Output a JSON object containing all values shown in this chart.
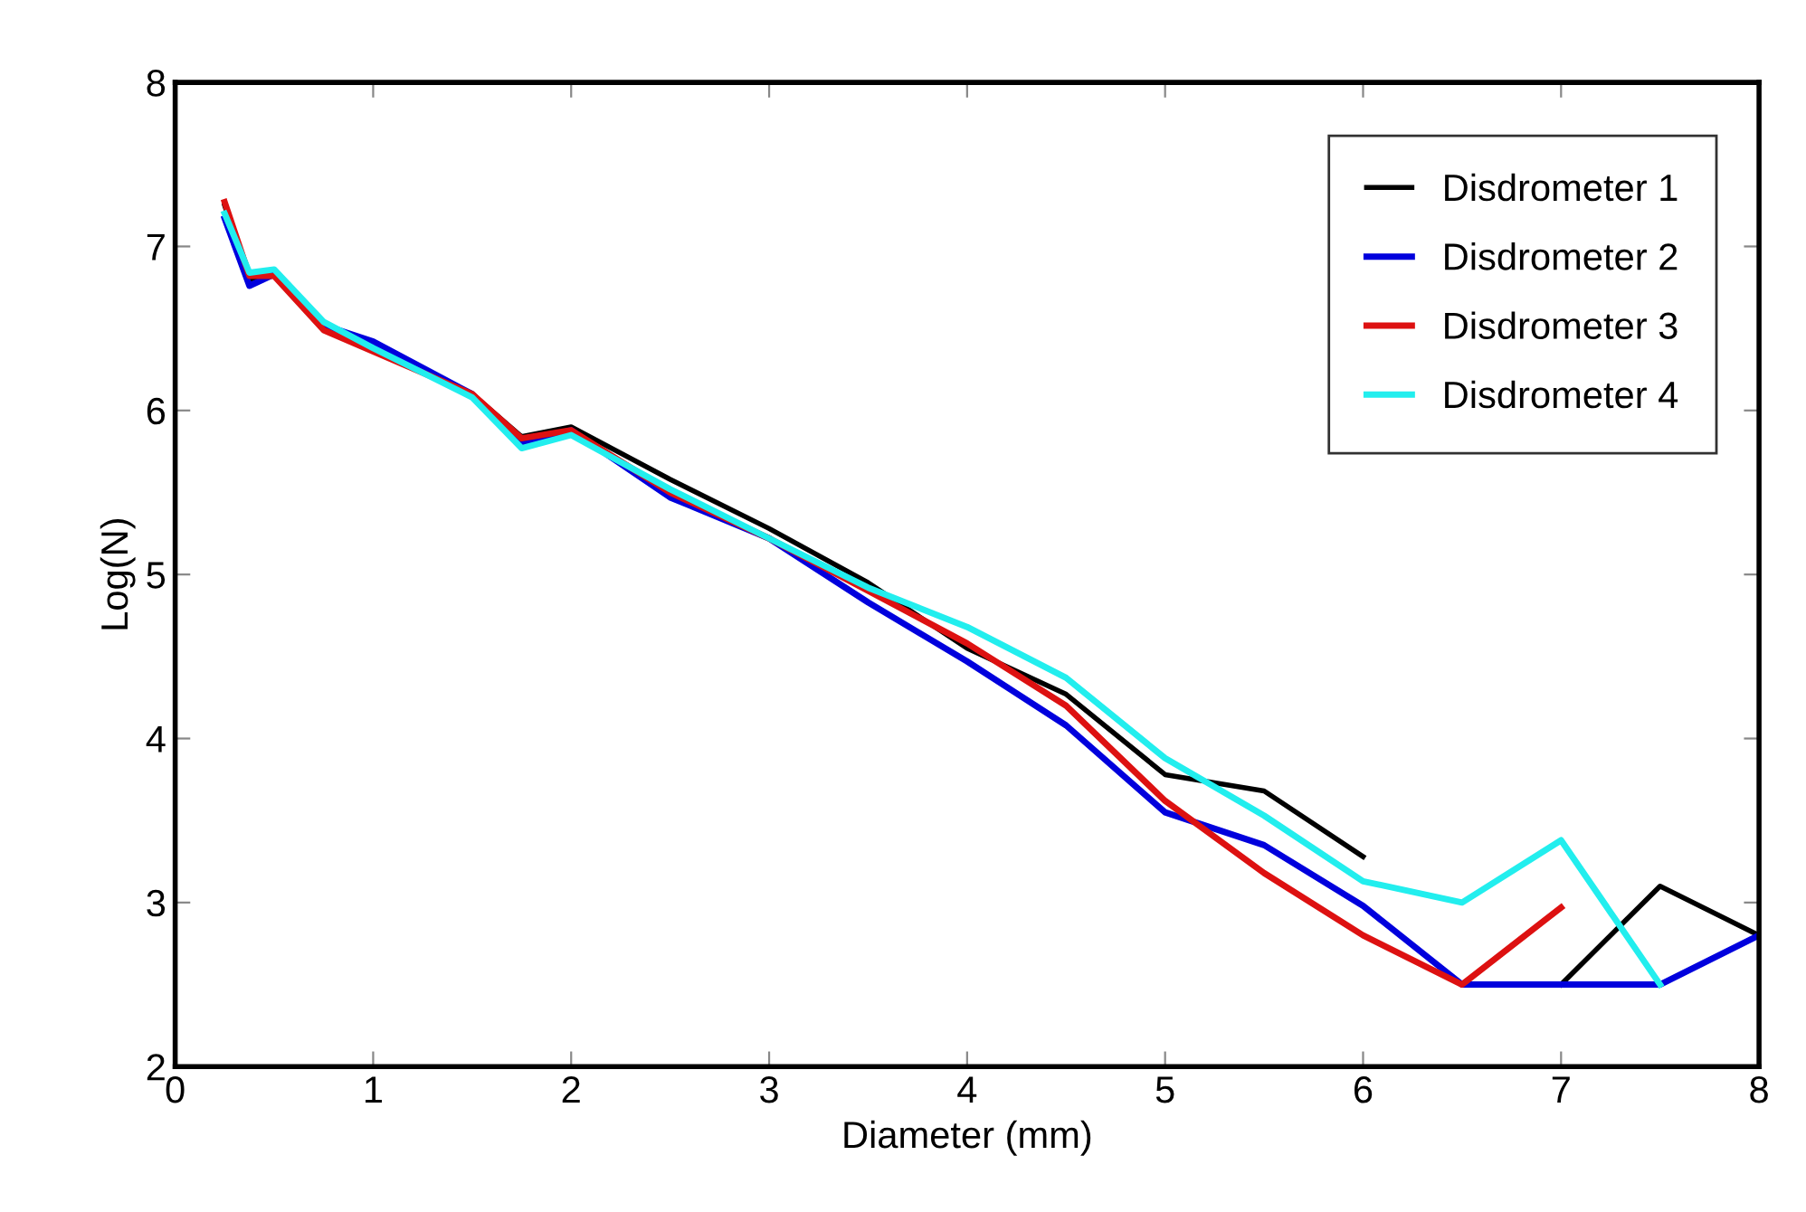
{
  "chart_data": {
    "type": "line",
    "xlabel": "Diameter (mm)",
    "ylabel": "Log(N)",
    "x": [
      0.25,
      0.375,
      0.5,
      0.75,
      1,
      1.5,
      1.75,
      2,
      2.5,
      3,
      3.5,
      4,
      4.5,
      5,
      5.5,
      6,
      6.5,
      7,
      7.5,
      8
    ],
    "series": [
      {
        "name": "Disdrometer 1",
        "color": "#000000",
        "values": [
          7.25,
          6.8,
          6.83,
          6.52,
          null,
          6.1,
          5.84,
          5.9,
          5.58,
          5.28,
          4.95,
          4.55,
          4.27,
          3.78,
          3.68,
          3.28,
          null,
          2.5,
          3.1,
          2.8
        ]
      },
      {
        "name": "Disdrometer 2",
        "color": "#0000dd",
        "values": [
          7.17,
          6.76,
          6.83,
          6.52,
          6.42,
          6.1,
          5.8,
          5.88,
          5.47,
          5.22,
          4.83,
          4.47,
          4.08,
          3.55,
          3.35,
          2.98,
          2.5,
          2.5,
          2.5,
          2.8
        ]
      },
      {
        "name": "Disdrometer 3",
        "color": "#dd1111",
        "values": [
          7.27,
          6.82,
          6.82,
          6.49,
          6.36,
          6.1,
          5.83,
          5.88,
          5.5,
          5.22,
          4.9,
          4.58,
          4.2,
          3.62,
          3.18,
          2.8,
          2.5,
          2.97,
          null,
          null
        ]
      },
      {
        "name": "Disdrometer 4",
        "color": "#22eeee",
        "values": [
          7.2,
          6.84,
          6.86,
          6.54,
          6.38,
          6.08,
          5.77,
          5.85,
          5.52,
          5.22,
          4.92,
          4.68,
          4.37,
          3.88,
          3.53,
          3.13,
          3.0,
          3.38,
          2.5,
          null
        ]
      }
    ],
    "xlim": [
      0,
      8
    ],
    "ylim": [
      2,
      8
    ],
    "xticks": [
      0,
      1,
      2,
      3,
      4,
      5,
      6,
      7,
      8
    ],
    "yticks": [
      2,
      3,
      4,
      5,
      6,
      7,
      8
    ],
    "legend": "top right",
    "grid": false
  }
}
